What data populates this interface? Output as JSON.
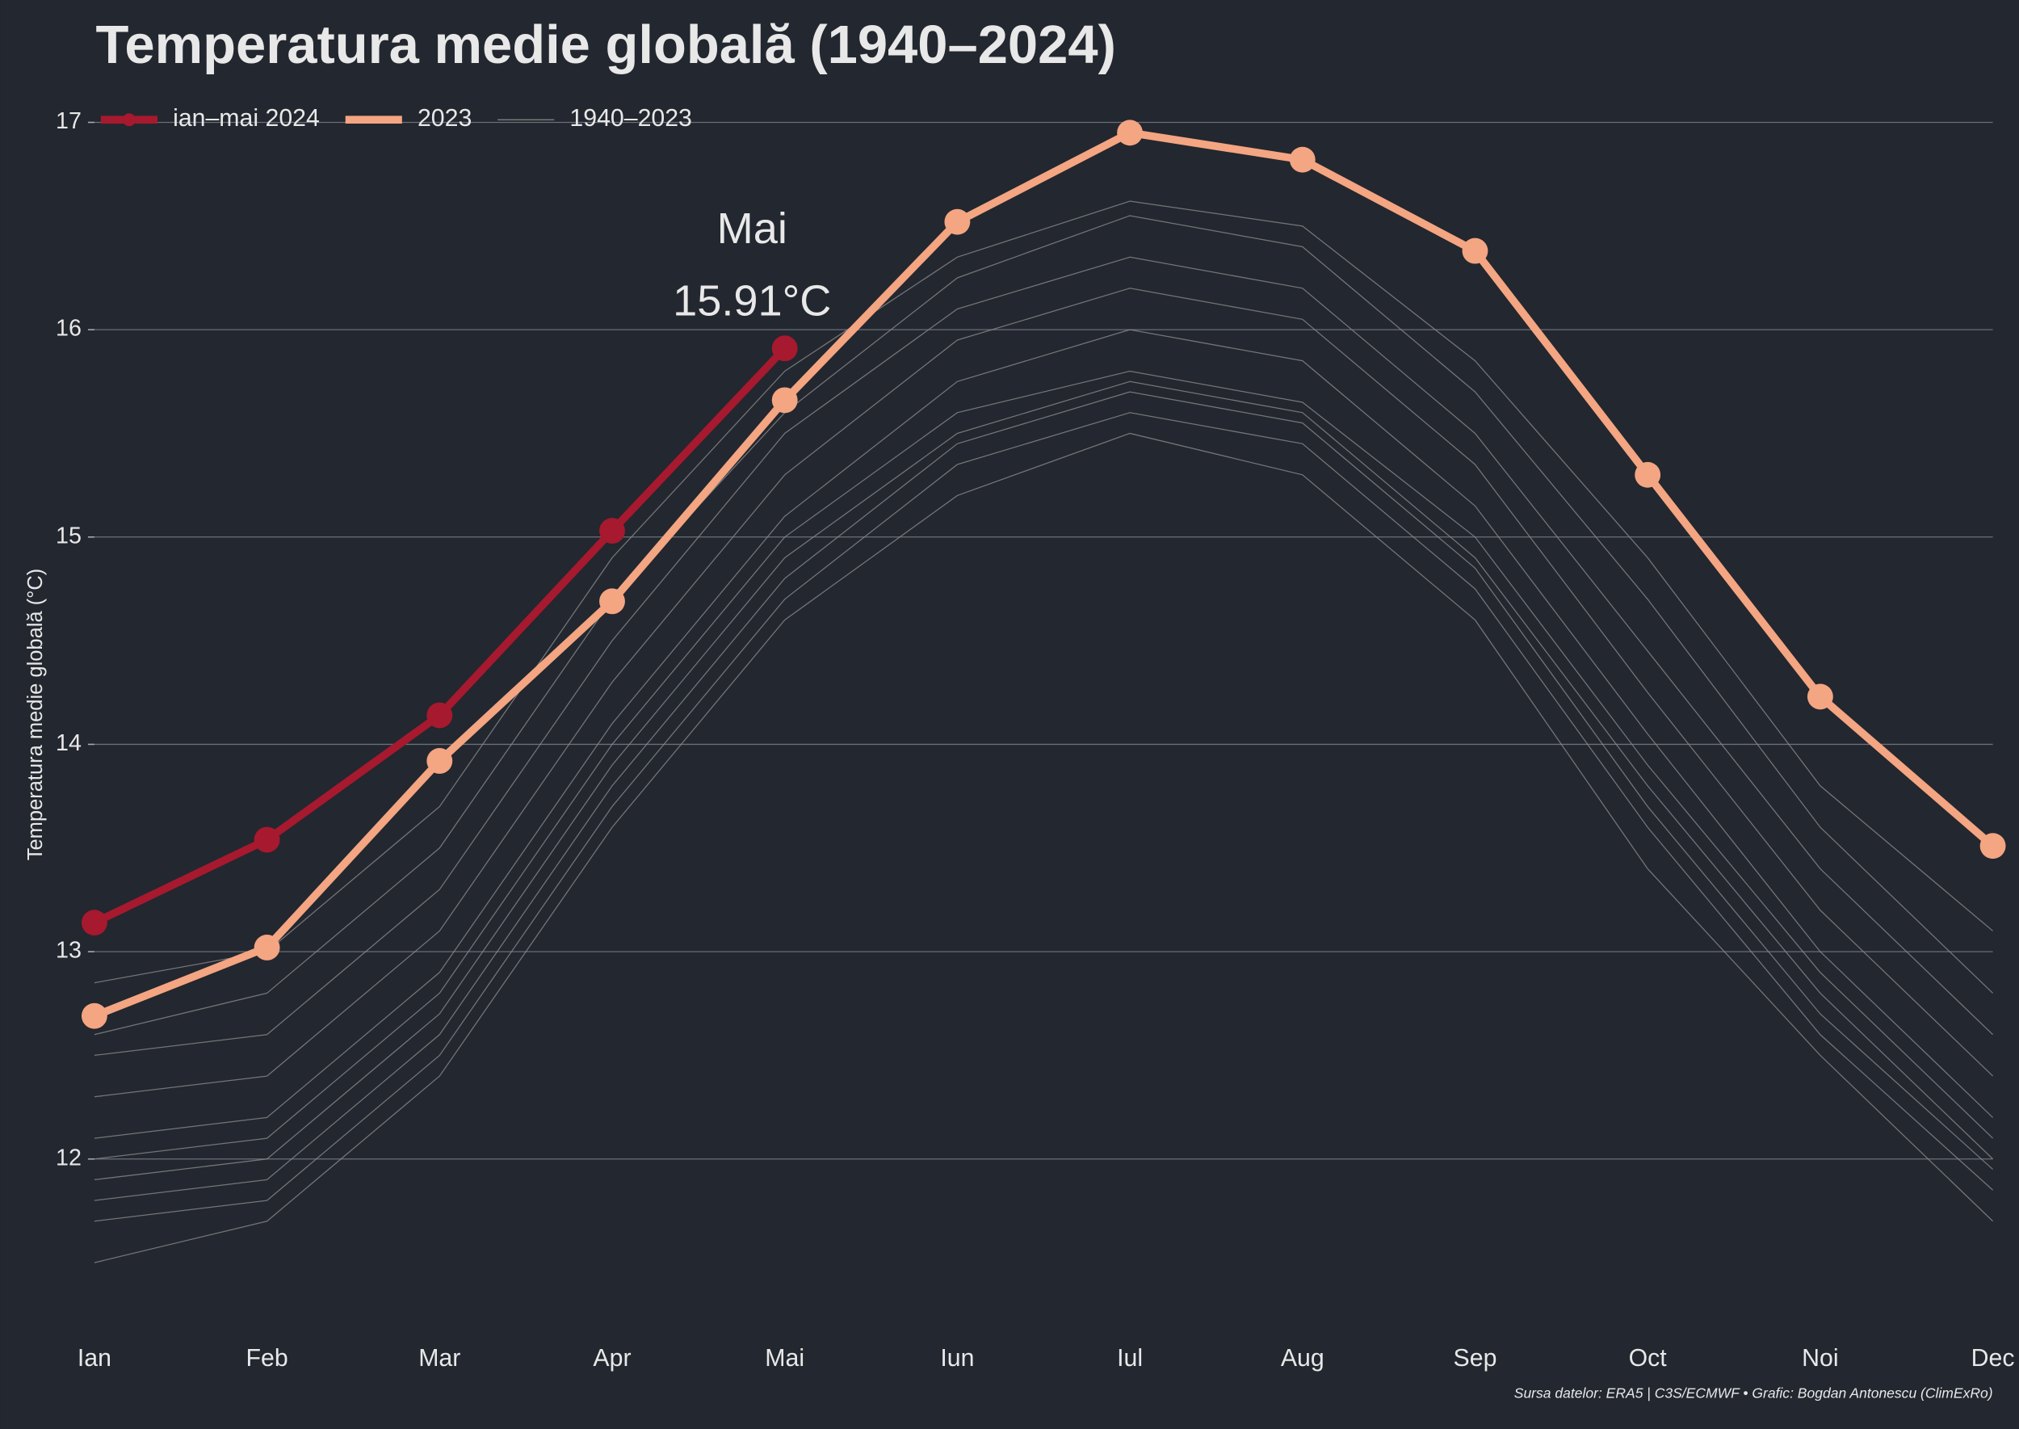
{
  "chart_data": {
    "type": "line",
    "title": "Temperatura medie globală (1940–2024)",
    "y_label": "Temperatura medie globală (°C)",
    "source": "Sursa datelor: ERA5 | C3S/ECMWF • Grafic: Bogdan Antonescu (ClimExRo)",
    "annotation": {
      "title": "Mai",
      "label": "15.91°C"
    },
    "categories": [
      "Ian",
      "Feb",
      "Mar",
      "Apr",
      "Mai",
      "Iun",
      "Iul",
      "Aug",
      "Sep",
      "Oct",
      "Noi",
      "Dec"
    ],
    "ylim": [
      11.3,
      17.05
    ],
    "yticks": [
      12,
      13,
      14,
      15,
      16,
      17
    ],
    "grid": true,
    "legend": "top-left",
    "series": [
      {
        "name": "ian–mai 2024",
        "color": "#a6192e",
        "values": [
          13.14,
          13.54,
          14.14,
          15.03,
          15.91,
          null,
          null,
          null,
          null,
          null,
          null,
          null
        ]
      },
      {
        "name": "2023",
        "color": "#f4a582",
        "values": [
          12.69,
          13.02,
          13.92,
          14.69,
          15.66,
          16.52,
          16.95,
          16.82,
          16.38,
          15.3,
          14.23,
          13.51
        ]
      },
      {
        "name": "1940–2023",
        "color": "#8a8a8a",
        "lines": [
          [
            11.5,
            11.7,
            12.4,
            13.6,
            14.6,
            15.2,
            15.5,
            15.3,
            14.6,
            13.4,
            12.5,
            11.7
          ],
          [
            11.7,
            11.8,
            12.5,
            13.7,
            14.7,
            15.35,
            15.6,
            15.45,
            14.75,
            13.6,
            12.6,
            11.85
          ],
          [
            11.8,
            11.9,
            12.6,
            13.8,
            14.8,
            15.45,
            15.7,
            15.55,
            14.85,
            13.7,
            12.7,
            11.95
          ],
          [
            11.9,
            12.0,
            12.7,
            13.9,
            14.9,
            15.5,
            15.75,
            15.6,
            14.9,
            13.8,
            12.8,
            12.0
          ],
          [
            12.0,
            12.1,
            12.8,
            14.0,
            15.0,
            15.6,
            15.8,
            15.65,
            15.0,
            13.9,
            12.9,
            12.1
          ],
          [
            12.1,
            12.2,
            12.9,
            14.1,
            15.1,
            15.75,
            16.0,
            15.85,
            15.15,
            14.05,
            13.0,
            12.2
          ],
          [
            12.3,
            12.4,
            13.1,
            14.3,
            15.3,
            15.95,
            16.2,
            16.05,
            15.35,
            14.25,
            13.2,
            12.4
          ],
          [
            12.5,
            12.6,
            13.3,
            14.5,
            15.5,
            16.1,
            16.35,
            16.2,
            15.5,
            14.45,
            13.4,
            12.6
          ],
          [
            12.6,
            12.8,
            13.5,
            14.7,
            15.6,
            16.25,
            16.55,
            16.4,
            15.7,
            14.7,
            13.6,
            12.8
          ],
          [
            12.85,
            13.0,
            13.7,
            14.9,
            15.8,
            16.35,
            16.62,
            16.5,
            15.85,
            14.9,
            13.8,
            13.1
          ]
        ]
      }
    ]
  }
}
